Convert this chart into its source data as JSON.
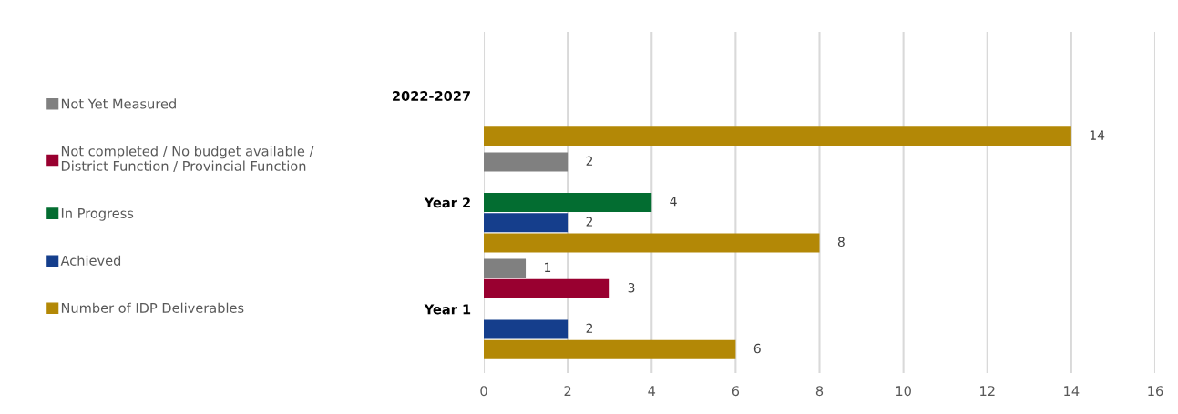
{
  "chart_data": {
    "type": "bar",
    "orientation": "horizontal",
    "categories": [
      "2022-2027",
      "Year 2",
      "Year 1"
    ],
    "series": [
      {
        "name": "Number of IDP Deliverables",
        "color": "#b38806",
        "values": [
          14,
          8,
          6
        ]
      },
      {
        "name": "Achieved",
        "color": "#153e8c",
        "values": [
          null,
          2,
          2
        ]
      },
      {
        "name": "In Progress",
        "color": "#036d31",
        "values": [
          null,
          4,
          null
        ]
      },
      {
        "name": "Not completed / No budget available /\nDistrict Function / Provincial Function",
        "color": "#990030",
        "values": [
          null,
          null,
          3
        ]
      },
      {
        "name": "Not Yet Measured",
        "color": "#808080",
        "values": [
          null,
          2,
          1
        ]
      }
    ],
    "xlim": [
      0,
      16
    ],
    "xticks": [
      0,
      2,
      4,
      6,
      8,
      10,
      12,
      14,
      16
    ],
    "grid": "x",
    "legend": "left",
    "data_labels": true
  }
}
